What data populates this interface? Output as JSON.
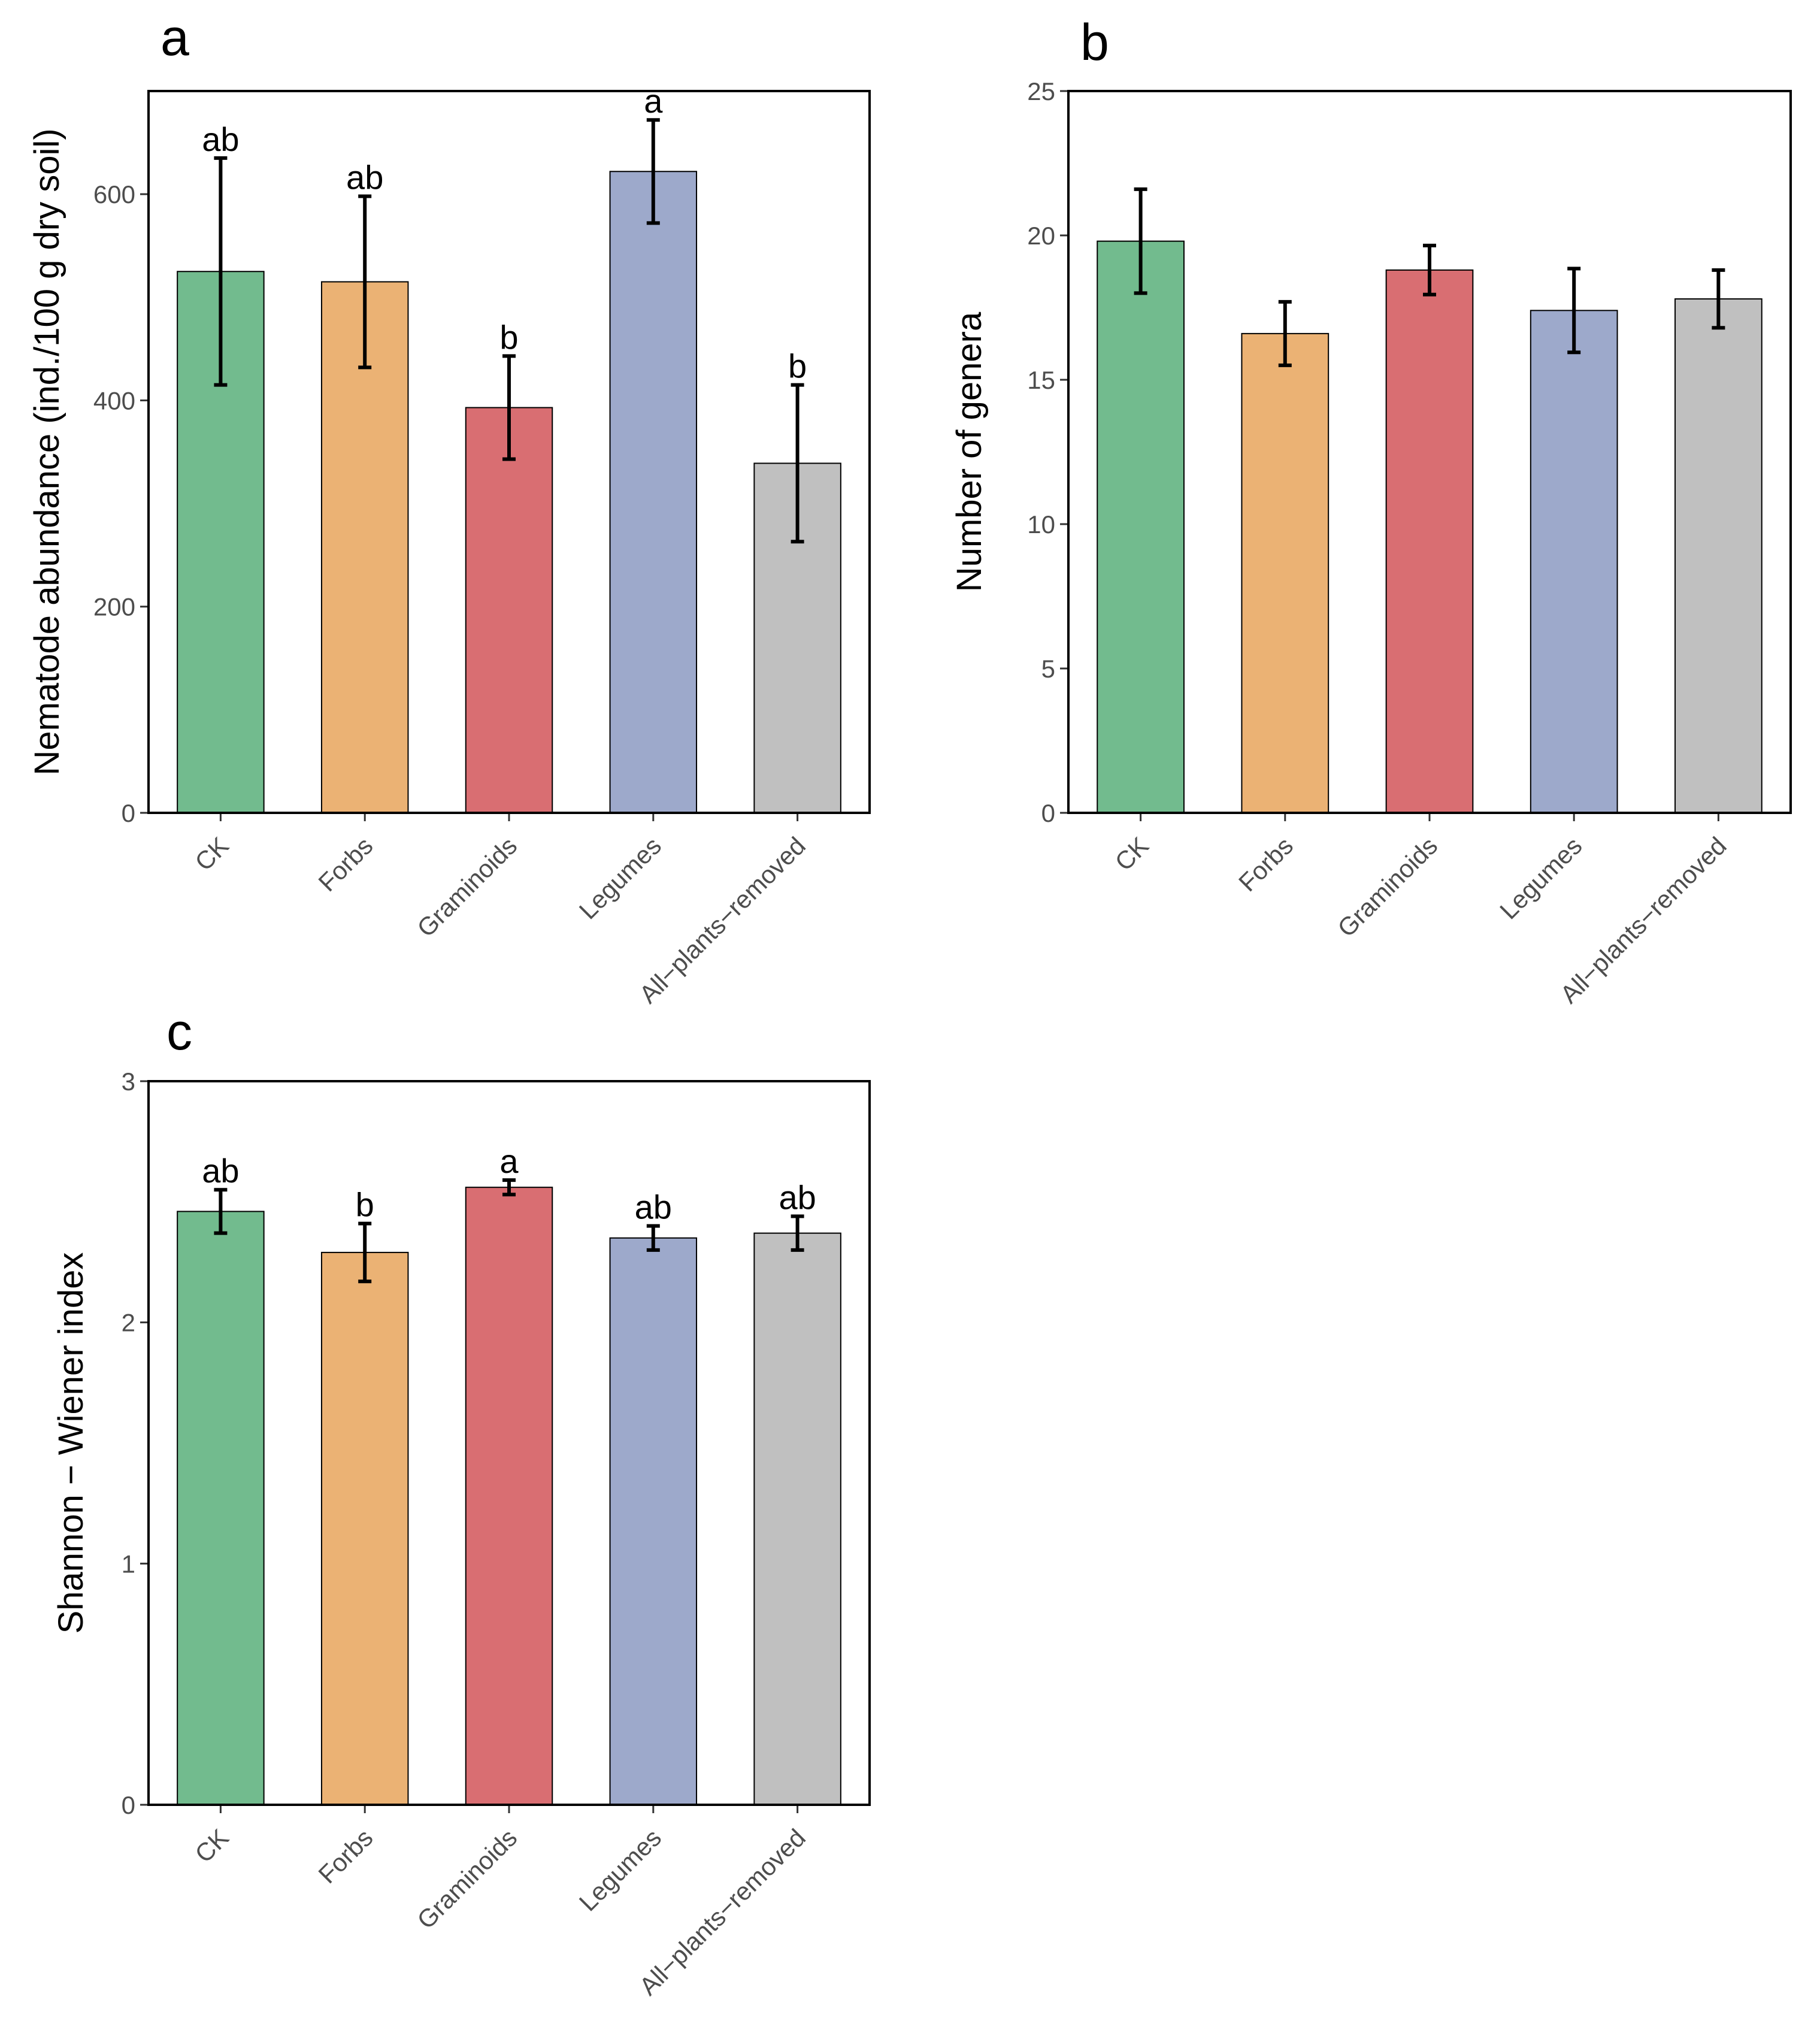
{
  "chart_data": [
    {
      "id": "a",
      "panel_label": "a",
      "type": "bar",
      "title": "",
      "xlabel": "",
      "ylabel": "Nematode abundance (ind./100 g dry soil)",
      "ylim": [
        0,
        700
      ],
      "yticks": [
        0,
        200,
        400,
        600
      ],
      "categories": [
        "CK",
        "Forbs",
        "Graminoids",
        "Legumes",
        "All−plants−removed"
      ],
      "values": [
        525,
        515,
        393,
        622,
        339
      ],
      "errors": [
        110,
        83,
        50,
        50,
        76
      ],
      "significance": [
        "ab",
        "ab",
        "b",
        "a",
        "b"
      ],
      "colors": [
        "#72BB8E",
        "#EBB274",
        "#D96E72",
        "#9DA9CB",
        "#C0C0C0"
      ],
      "grid": false
    },
    {
      "id": "b",
      "panel_label": "b",
      "type": "bar",
      "title": "",
      "xlabel": "",
      "ylabel": "Number of genera",
      "ylim": [
        0,
        25
      ],
      "yticks": [
        0,
        5,
        10,
        15,
        20,
        25
      ],
      "categories": [
        "CK",
        "Forbs",
        "Graminoids",
        "Legumes",
        "All−plants−removed"
      ],
      "values": [
        19.8,
        16.6,
        18.8,
        17.4,
        17.8
      ],
      "errors": [
        1.8,
        1.1,
        0.85,
        1.45,
        1.0
      ],
      "significance": [],
      "colors": [
        "#72BB8E",
        "#EBB274",
        "#D96E72",
        "#9DA9CB",
        "#C0C0C0"
      ],
      "grid": false
    },
    {
      "id": "c",
      "panel_label": "c",
      "type": "bar",
      "title": "",
      "xlabel": "",
      "ylabel": "Shannon − Wiener index",
      "ylim": [
        0,
        3
      ],
      "yticks": [
        0,
        1,
        2,
        3
      ],
      "categories": [
        "CK",
        "Forbs",
        "Graminoids",
        "Legumes",
        "All−plants−removed"
      ],
      "values": [
        2.46,
        2.29,
        2.56,
        2.35,
        2.37
      ],
      "errors": [
        0.09,
        0.12,
        0.03,
        0.05,
        0.07
      ],
      "significance": [
        "ab",
        "b",
        "a",
        "ab",
        "ab"
      ],
      "colors": [
        "#72BB8E",
        "#EBB274",
        "#D96E72",
        "#9DA9CB",
        "#C0C0C0"
      ],
      "grid": false
    }
  ]
}
